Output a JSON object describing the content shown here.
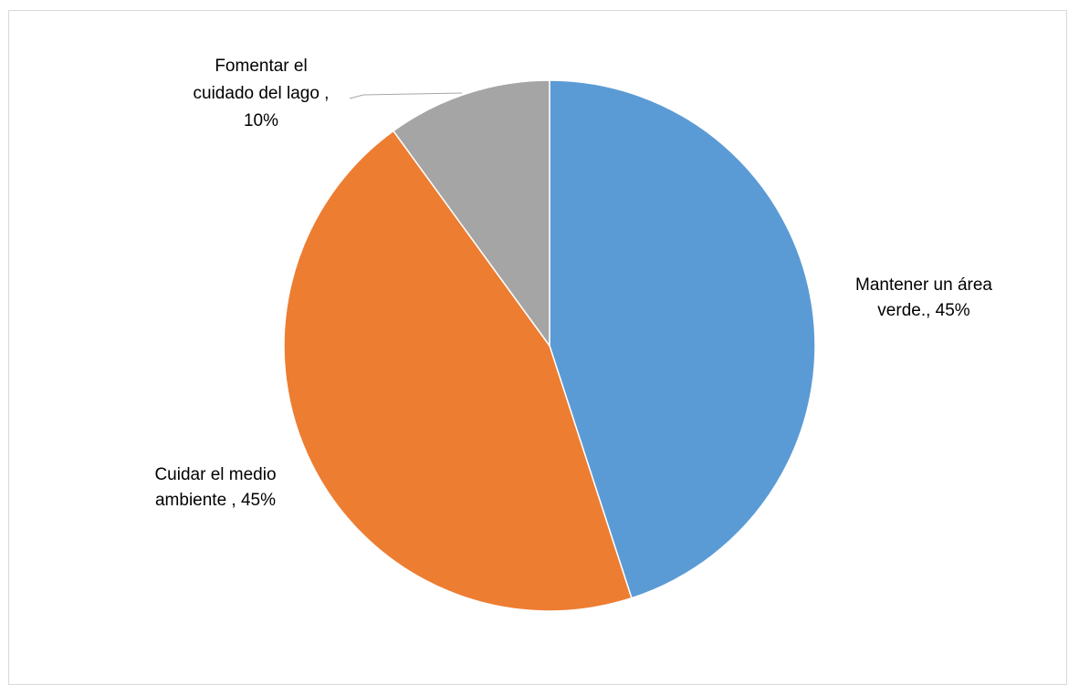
{
  "chart_data": {
    "type": "pie",
    "title": "",
    "start_angle_deg": 0,
    "direction": "clockwise",
    "legend": "none",
    "slices": [
      {
        "category": "Mantener un área verde.",
        "value": 45,
        "label_lines": [
          "Mantener un área",
          "verde., 45%"
        ],
        "color": "#5b9bd5"
      },
      {
        "category": "Cuidar el medio ambiente",
        "value": 45,
        "label_lines": [
          "Cuidar el medio",
          "ambiente , 45%"
        ],
        "color": "#ed7d31"
      },
      {
        "category": "Fomentar el cuidado del lago",
        "value": 10,
        "label_lines": [
          "Fomentar el",
          "cuidado del lago ,",
          "10%"
        ],
        "color": "#a5a5a5"
      }
    ]
  }
}
